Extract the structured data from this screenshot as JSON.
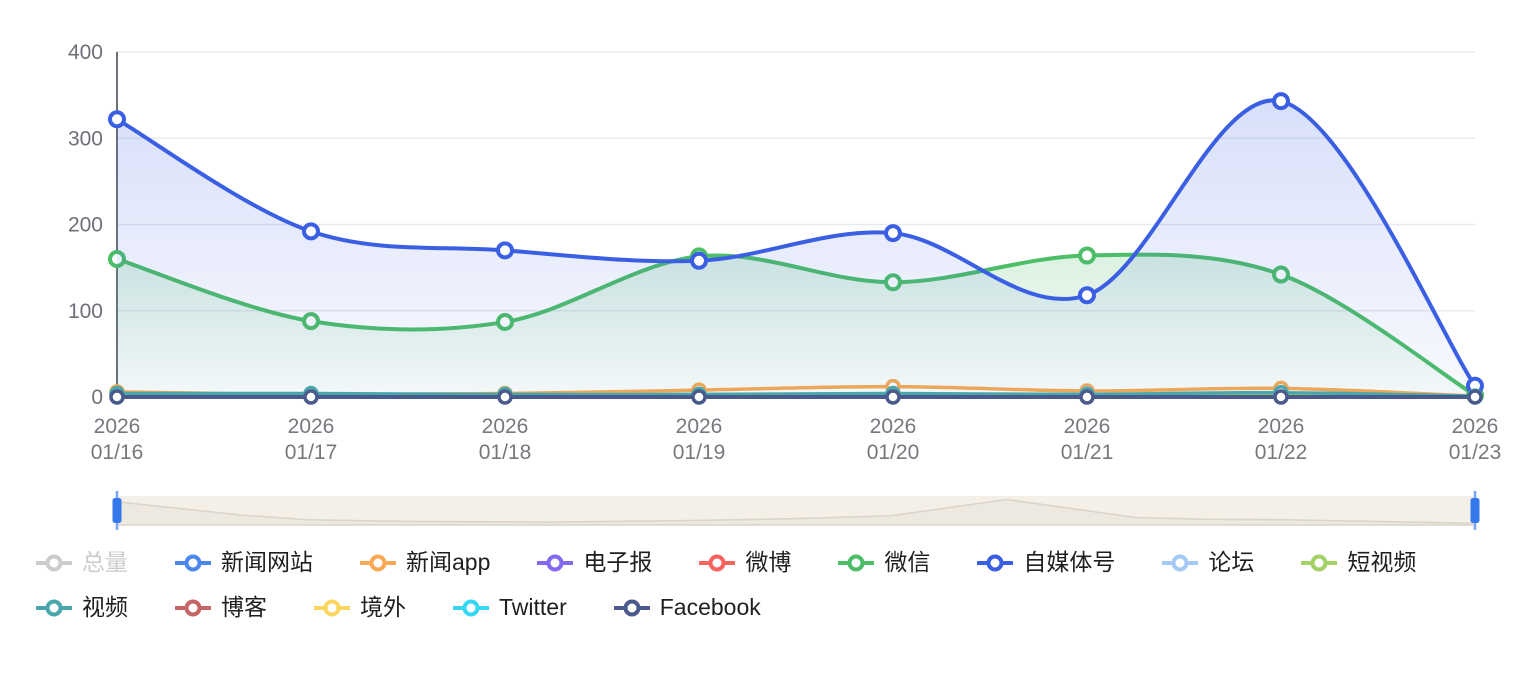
{
  "chart_data": {
    "type": "line",
    "title": "",
    "xlabel": "",
    "ylabel": "",
    "grid": true,
    "legend_position": "bottom",
    "y_axis": {
      "min": 0,
      "max": 400,
      "ticks": [
        0,
        100,
        200,
        300,
        400
      ]
    },
    "x_categories": [
      {
        "year": "2026",
        "date": "01/16"
      },
      {
        "year": "2026",
        "date": "01/17"
      },
      {
        "year": "2026",
        "date": "01/18"
      },
      {
        "year": "2026",
        "date": "01/19"
      },
      {
        "year": "2026",
        "date": "01/20"
      },
      {
        "year": "2026",
        "date": "01/21"
      },
      {
        "year": "2026",
        "date": "01/22"
      },
      {
        "year": "2026",
        "date": "01/23"
      }
    ],
    "series": [
      {
        "name": "总量",
        "color": "#CCCCCC",
        "selected": false,
        "width": 0,
        "values": null
      },
      {
        "name": "新闻网站",
        "color": "#4C87EE",
        "selected": true,
        "width": 2.5,
        "values": [
          0,
          0,
          0,
          0,
          0,
          0,
          0,
          0
        ]
      },
      {
        "name": "新闻app",
        "color": "#F9A954",
        "selected": true,
        "width": 3.5,
        "values": [
          6,
          3,
          4,
          8,
          12,
          7,
          10,
          1
        ]
      },
      {
        "name": "电子报",
        "color": "#8468F0",
        "selected": true,
        "width": 2.5,
        "values": [
          0,
          0,
          0,
          0,
          0,
          0,
          0,
          0
        ]
      },
      {
        "name": "微博",
        "color": "#F86360",
        "selected": true,
        "width": 2.5,
        "values": [
          0,
          0,
          0,
          0,
          0,
          0,
          0,
          0
        ]
      },
      {
        "name": "微信",
        "color": "#4DBE68",
        "selected": true,
        "width": 4,
        "area": true,
        "values": [
          160,
          88,
          87,
          163,
          133,
          164,
          142,
          2
        ]
      },
      {
        "name": "自媒体号",
        "color": "#3B5FE3",
        "selected": true,
        "width": 4,
        "area": true,
        "values": [
          322,
          192,
          170,
          158,
          190,
          118,
          343,
          13
        ]
      },
      {
        "name": "论坛",
        "color": "#A5C9F6",
        "selected": true,
        "width": 2.5,
        "values": [
          2,
          2,
          1,
          2,
          3,
          4,
          3,
          0
        ]
      },
      {
        "name": "短视频",
        "color": "#A3D165",
        "selected": true,
        "width": 2.5,
        "values": [
          1,
          1,
          1,
          1,
          2,
          2,
          2,
          0
        ]
      },
      {
        "name": "视频",
        "color": "#4BA6AB",
        "selected": true,
        "width": 3.5,
        "values": [
          4,
          4,
          3,
          3,
          4,
          3,
          5,
          1
        ]
      },
      {
        "name": "博客",
        "color": "#C56565",
        "selected": true,
        "width": 2.5,
        "values": [
          0,
          0,
          0,
          0,
          0,
          0,
          0,
          0
        ]
      },
      {
        "name": "境外",
        "color": "#FBD75F",
        "selected": true,
        "width": 2.5,
        "values": [
          0,
          0,
          0,
          0,
          0,
          0,
          0,
          0
        ]
      },
      {
        "name": "Twitter",
        "color": "#35D7F2",
        "selected": true,
        "width": 2.5,
        "values": [
          0,
          0,
          0,
          0,
          0,
          0,
          0,
          0
        ]
      },
      {
        "name": "Facebook",
        "color": "#4A5A8C",
        "selected": true,
        "width": 4,
        "values": [
          0,
          0,
          0,
          0,
          0,
          0,
          0,
          0
        ]
      }
    ],
    "slider": {
      "handle_color": "#3478EC",
      "track_color": "#F4EFE7",
      "shadow": [
        [
          0,
          0.8
        ],
        [
          0.09,
          0.35
        ],
        [
          0.14,
          0.18
        ],
        [
          0.22,
          0.12
        ],
        [
          0.32,
          0.1
        ],
        [
          0.43,
          0.16
        ],
        [
          0.5,
          0.22
        ],
        [
          0.57,
          0.32
        ],
        [
          0.655,
          0.88
        ],
        [
          0.75,
          0.26
        ],
        [
          0.8,
          0.2
        ],
        [
          0.86,
          0.18
        ],
        [
          0.93,
          0.12
        ],
        [
          1,
          0.06
        ]
      ],
      "range_start_pct": 0,
      "range_end_pct": 100
    }
  },
  "legend": {
    "rows": [
      [
        "总量",
        "新闻网站",
        "新闻app",
        "电子报",
        "微博",
        "微信",
        "自媒体号",
        "论坛",
        "短视频"
      ],
      [
        "视频",
        "博客",
        "境外",
        "Twitter",
        "Facebook"
      ]
    ]
  }
}
